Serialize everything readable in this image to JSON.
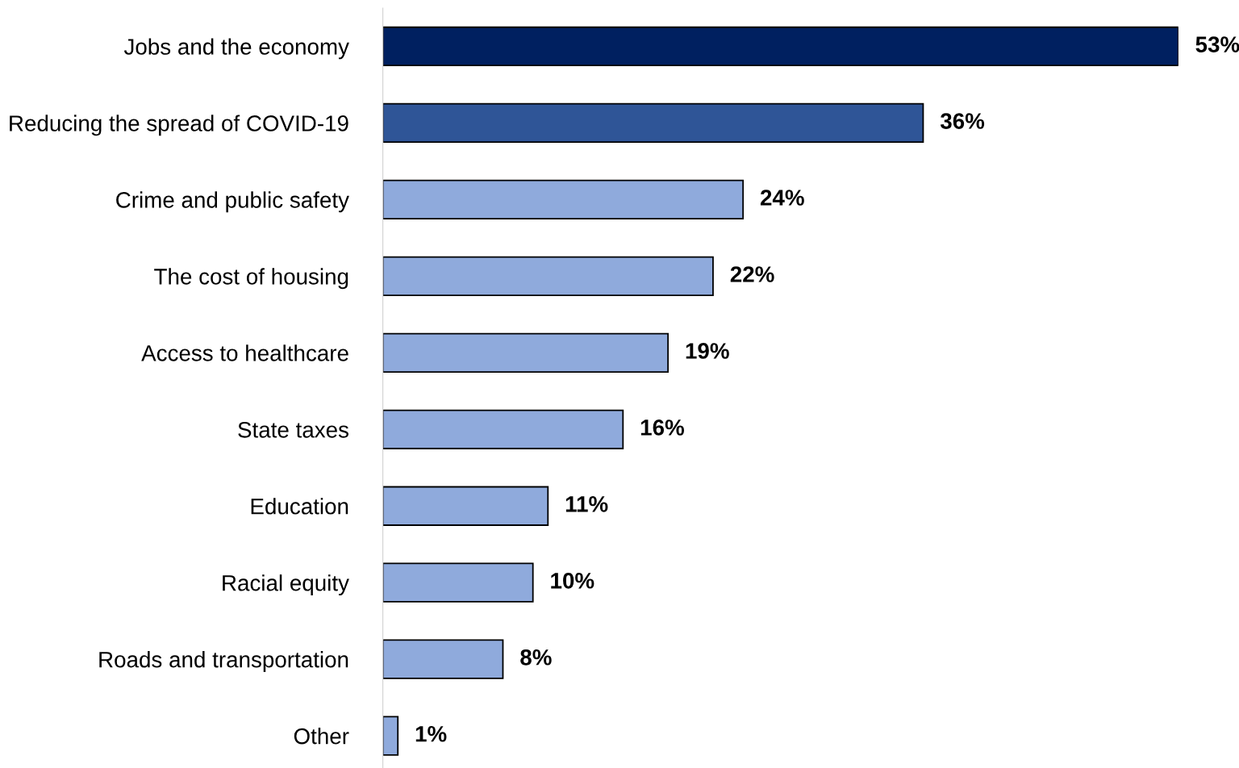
{
  "chart_data": {
    "type": "bar",
    "orientation": "horizontal",
    "categories": [
      "Jobs and the economy",
      "Reducing the spread of COVID-19",
      "Crime and public safety",
      "The cost of housing",
      "Access to healthcare",
      "State taxes",
      "Education",
      "Racial equity",
      "Roads and transportation",
      "Other"
    ],
    "values": [
      53,
      36,
      24,
      22,
      19,
      16,
      11,
      10,
      8,
      1
    ],
    "colors": [
      "#002060",
      "#2f5597",
      "#8faadc",
      "#8faadc",
      "#8faadc",
      "#8faadc",
      "#8faadc",
      "#8faadc",
      "#8faadc",
      "#8faadc"
    ],
    "value_labels": [
      "53%",
      "36%",
      "24%",
      "22%",
      "19%",
      "16%",
      "11%",
      "10%",
      "8%",
      "1%"
    ],
    "grid": false,
    "legend": false
  }
}
